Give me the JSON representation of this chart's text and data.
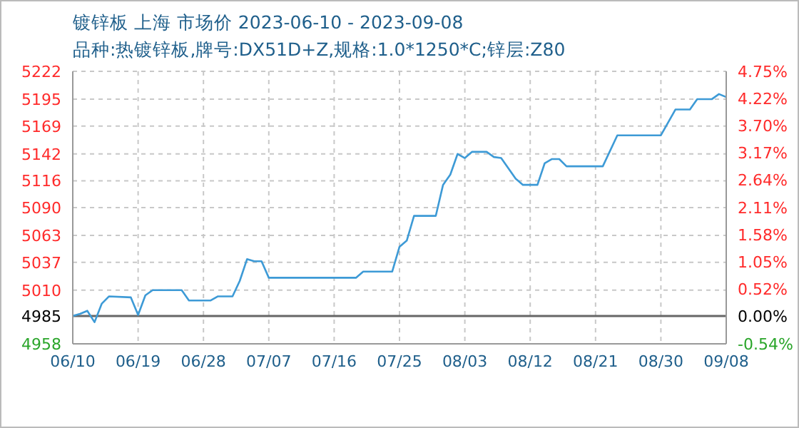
{
  "chart_data": {
    "type": "line",
    "title": "镀锌板 上海 市场价 2023-06-10 - 2023-09-08",
    "subtitle": "品种:热镀锌板,牌号:DX51D+Z,规格:1.0*1250*C;锌层:Z80",
    "x": [
      "2023-06-10",
      "2023-06-11",
      "2023-06-12",
      "2023-06-13",
      "2023-06-14",
      "2023-06-15",
      "2023-06-18",
      "2023-06-19",
      "2023-06-20",
      "2023-06-21",
      "2023-06-25",
      "2023-06-26",
      "2023-06-29",
      "2023-06-30",
      "2023-07-02",
      "2023-07-03",
      "2023-07-04",
      "2023-07-05",
      "2023-07-06",
      "2023-07-07",
      "2023-07-19",
      "2023-07-20",
      "2023-07-24",
      "2023-07-25",
      "2023-07-26",
      "2023-07-27",
      "2023-07-30",
      "2023-07-31",
      "2023-08-01",
      "2023-08-02",
      "2023-08-03",
      "2023-08-04",
      "2023-08-06",
      "2023-08-07",
      "2023-08-08",
      "2023-08-10",
      "2023-08-11",
      "2023-08-13",
      "2023-08-14",
      "2023-08-15",
      "2023-08-16",
      "2023-08-17",
      "2023-08-22",
      "2023-08-24",
      "2023-08-30",
      "2023-09-01",
      "2023-09-03",
      "2023-09-04",
      "2023-09-06",
      "2023-09-07",
      "2023-09-08"
    ],
    "series": [
      {
        "color": "#3d9ad6",
        "values": [
          4985,
          4987,
          4990,
          4979,
          4997,
          5004,
          5003,
          4986,
          5005,
          5010,
          5010,
          5000,
          5000,
          5004,
          5004,
          5019,
          5040,
          5038,
          5038,
          5022,
          5022,
          5028,
          5028,
          5052,
          5058,
          5082,
          5082,
          5112,
          5122,
          5142,
          5138,
          5144,
          5144,
          5139,
          5138,
          5118,
          5112,
          5112,
          5133,
          5137,
          5137,
          5130,
          5130,
          5160,
          5160,
          5185,
          5185,
          5195,
          5195,
          5200,
          5197
        ]
      }
    ],
    "xlim": [
      "2023-06-10",
      "2023-09-08"
    ],
    "xticks": [
      {
        "value": "2023-06-10",
        "label": "06/10"
      },
      {
        "value": "2023-06-19",
        "label": "06/19"
      },
      {
        "value": "2023-06-28",
        "label": "06/28"
      },
      {
        "value": "2023-07-07",
        "label": "07/07"
      },
      {
        "value": "2023-07-16",
        "label": "07/16"
      },
      {
        "value": "2023-07-25",
        "label": "07/25"
      },
      {
        "value": "2023-08-03",
        "label": "08/03"
      },
      {
        "value": "2023-08-12",
        "label": "08/12"
      },
      {
        "value": "2023-08-21",
        "label": "08/21"
      },
      {
        "value": "2023-08-30",
        "label": "08/30"
      },
      {
        "value": "2023-09-08",
        "label": "09/08"
      }
    ],
    "ylim": [
      4958,
      5222
    ],
    "yticks": [
      4958,
      4985,
      5010,
      5037,
      5063,
      5090,
      5116,
      5142,
      5169,
      5195,
      5222
    ],
    "y2lim": [
      -0.54,
      4.75
    ],
    "y2ticks": [
      {
        "value": -0.54,
        "label": "-0.54%"
      },
      {
        "value": 0,
        "label": "0.00%"
      },
      {
        "value": 0.52,
        "label": "0.52%"
      },
      {
        "value": 1.05,
        "label": "1.05%"
      },
      {
        "value": 1.58,
        "label": "1.58%"
      },
      {
        "value": 2.11,
        "label": "2.11%"
      },
      {
        "value": 2.64,
        "label": "2.64%"
      },
      {
        "value": 3.17,
        "label": "3.17%"
      },
      {
        "value": 3.7,
        "label": "3.70%"
      },
      {
        "value": 4.22,
        "label": "4.22%"
      },
      {
        "value": 4.75,
        "label": "4.75%"
      }
    ],
    "ref_lines": [
      {
        "axis": "y",
        "value": 4985,
        "color": "#666666"
      }
    ],
    "grid": true,
    "marker": "none",
    "line_style": "solid"
  }
}
